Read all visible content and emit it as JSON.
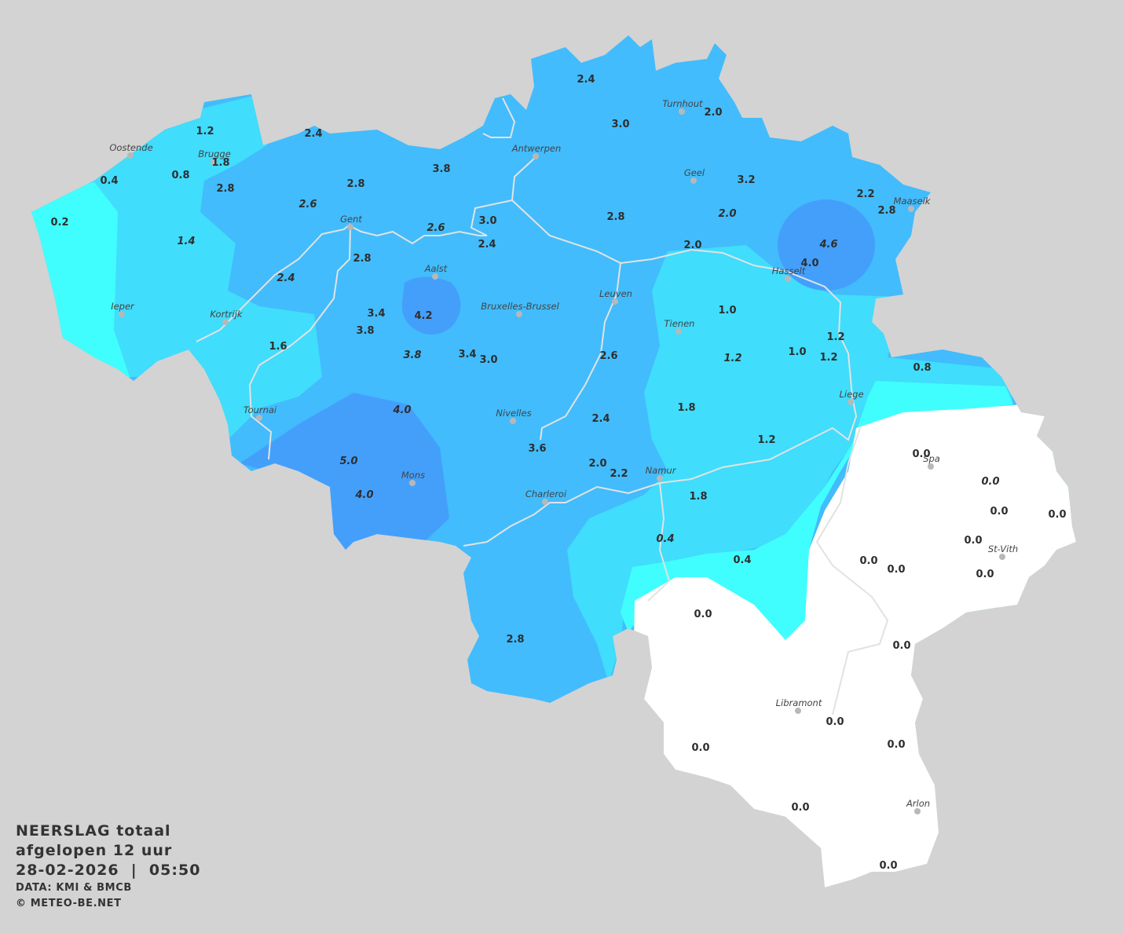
{
  "legend": {
    "title": "NEERSLAG totaal",
    "subtitle": "afgelopen 12 uur",
    "datetime": "28-02-2026  |  05:50",
    "source": "DATA: KMI & BMCB",
    "copyright": "© METEO-BE.NET"
  },
  "colors": {
    "background": "#d3d3d3",
    "level_0": "#ffffff",
    "level_low": "#40fefd",
    "level_mid": "#40ddfc",
    "level_main": "#42bcfc",
    "level_high": "#449ffb",
    "rivers": "#e2e2e2"
  },
  "stations": [
    {
      "v": "2.4"
    },
    {
      "v": "3.0"
    },
    {
      "v": "2.0"
    },
    {
      "v": "1.2"
    },
    {
      "v": "2.4"
    },
    {
      "v": "1.8"
    },
    {
      "v": "0.4"
    },
    {
      "v": "0.8"
    },
    {
      "v": "2.8"
    },
    {
      "v": "2.8"
    },
    {
      "v": "3.8"
    },
    {
      "v": "3.2"
    },
    {
      "v": "2.2"
    },
    {
      "v": "2.8"
    },
    {
      "v": "0.2"
    },
    {
      "v": "2.6",
      "italic": true
    },
    {
      "v": "2.6",
      "italic": true
    },
    {
      "v": "3.0"
    },
    {
      "v": "2.4"
    },
    {
      "v": "2.8"
    },
    {
      "v": "2.0",
      "italic": true
    },
    {
      "v": "4.6",
      "italic": true
    },
    {
      "v": "4.0"
    },
    {
      "v": "2.0"
    },
    {
      "v": "1.4",
      "italic": true
    },
    {
      "v": "2.8"
    },
    {
      "v": "2.4",
      "italic": true
    },
    {
      "v": "4.2"
    },
    {
      "v": "3.4"
    },
    {
      "v": "3.8"
    },
    {
      "v": "1.0"
    },
    {
      "v": "1.2"
    },
    {
      "v": "1.6"
    },
    {
      "v": "3.8",
      "italic": true
    },
    {
      "v": "3.4"
    },
    {
      "v": "3.0"
    },
    {
      "v": "2.6"
    },
    {
      "v": "1.2",
      "italic": true
    },
    {
      "v": "1.0"
    },
    {
      "v": "1.2"
    },
    {
      "v": "0.8"
    },
    {
      "v": "4.0",
      "italic": true
    },
    {
      "v": "1.8"
    },
    {
      "v": "2.4"
    },
    {
      "v": "1.2"
    },
    {
      "v": "3.6"
    },
    {
      "v": "5.0",
      "italic": true
    },
    {
      "v": "2.0"
    },
    {
      "v": "2.2"
    },
    {
      "v": "0.0"
    },
    {
      "v": "0.0",
      "italic": true
    },
    {
      "v": "4.0",
      "italic": true
    },
    {
      "v": "1.8"
    },
    {
      "v": "0.0"
    },
    {
      "v": "0.0"
    },
    {
      "v": "0.0"
    },
    {
      "v": "0.4",
      "italic": true
    },
    {
      "v": "0.4"
    },
    {
      "v": "0.0"
    },
    {
      "v": "0.0"
    },
    {
      "v": "0.0"
    },
    {
      "v": "0.0"
    },
    {
      "v": "2.8"
    },
    {
      "v": "0.0"
    },
    {
      "v": "0.0"
    },
    {
      "v": "0.0"
    },
    {
      "v": "0.0"
    },
    {
      "v": "0.0"
    },
    {
      "v": "0.0"
    }
  ],
  "cities": [
    "Oostende",
    "Brugge",
    "Antwerpen",
    "Turnhout",
    "Geel",
    "Maaseik",
    "Gent",
    "Aalst",
    "Hasselt",
    "Leuven",
    "Ieper",
    "Kortrijk",
    "Bruxelles-Brussel",
    "Tienen",
    "Liege",
    "Tournai",
    "Nivelles",
    "Spa",
    "Namur",
    "Mons",
    "Charleroi",
    "St-Vith",
    "Libramont",
    "Arlon"
  ]
}
